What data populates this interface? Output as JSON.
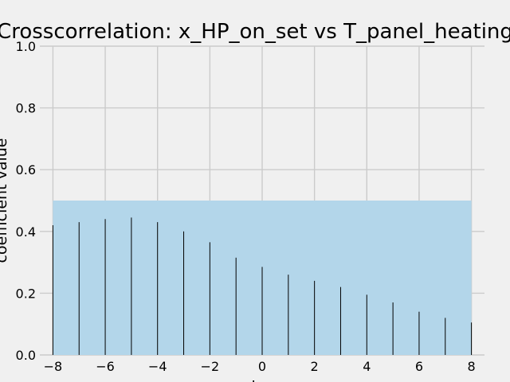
{
  "chart_data": {
    "type": "bar",
    "title": "Crosscorrelation: x_HP_on_set vs T_panel_heating",
    "xlabel": "lag",
    "ylabel": "coefficient value",
    "xlim": [
      -8.5,
      8.5
    ],
    "ylim": [
      0,
      1.0
    ],
    "xticks": [
      -8,
      -6,
      -4,
      -2,
      0,
      2,
      4,
      6,
      8
    ],
    "yticks": [
      0.0,
      0.2,
      0.4,
      0.6,
      0.8,
      1.0
    ],
    "grid": true,
    "band": {
      "x_range": [
        -8,
        8
      ],
      "y_range": [
        0,
        0.5
      ]
    },
    "x": [
      -8,
      -7,
      -6,
      -5,
      -4,
      -3,
      -2,
      -1,
      0,
      1,
      2,
      3,
      4,
      5,
      6,
      7,
      8
    ],
    "values": [
      0.42,
      0.43,
      0.44,
      0.445,
      0.43,
      0.4,
      0.365,
      0.315,
      0.285,
      0.26,
      0.24,
      0.22,
      0.195,
      0.17,
      0.14,
      0.12,
      0.105
    ],
    "colors": {
      "background": "#f0f0f0",
      "grid": "#cbcbcb",
      "band": "#b3d6ea",
      "bar": "#000000"
    }
  }
}
